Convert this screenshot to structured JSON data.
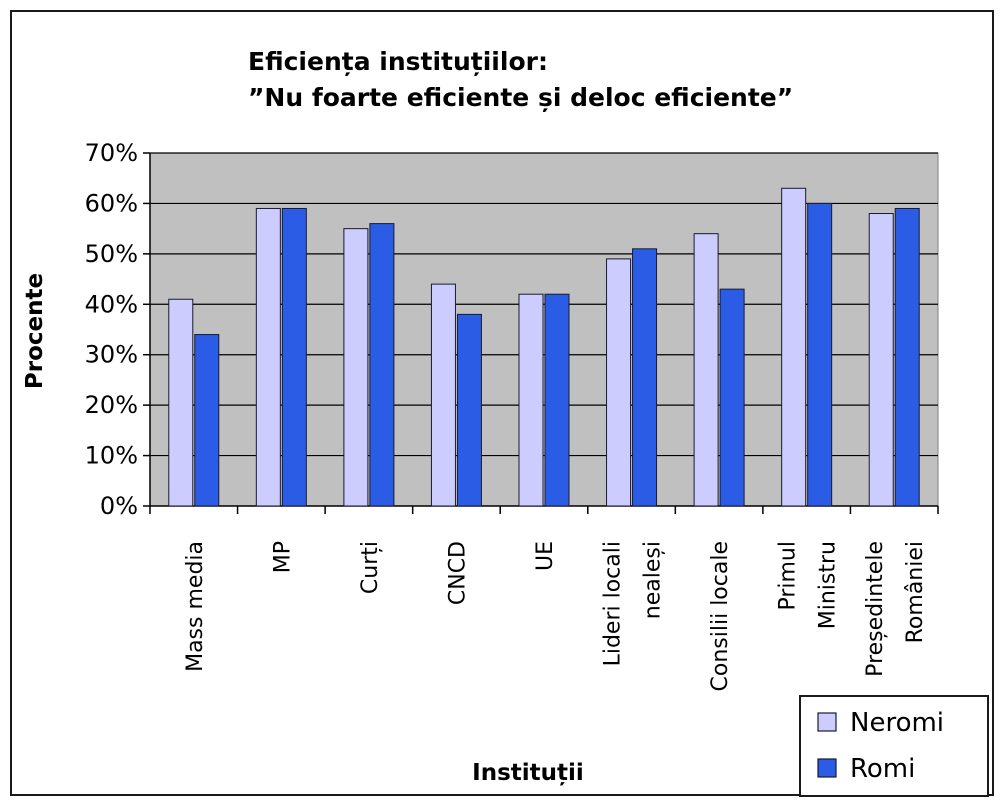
{
  "chart_data": {
    "type": "bar",
    "title": "Eficiența instituțiilor:",
    "subtitle": "”Nu foarte eficiente și deloc eficiente”",
    "xlabel": "Instituții",
    "ylabel": "Procente",
    "ylim": [
      0,
      70
    ],
    "yticks": [
      "0%",
      "10%",
      "20%",
      "30%",
      "40%",
      "50%",
      "60%",
      "70%"
    ],
    "grid": true,
    "legend_position": "bottom-right",
    "categories": [
      [
        "Mass media"
      ],
      [
        "MP"
      ],
      [
        "Curți"
      ],
      [
        "CNCD"
      ],
      [
        "UE"
      ],
      [
        "Lideri locali",
        "nealeși"
      ],
      [
        "Consilii locale"
      ],
      [
        "Primul",
        "Ministru"
      ],
      [
        "Președintele",
        "României"
      ]
    ],
    "series": [
      {
        "name": "Neromi",
        "color": "#ccccff",
        "values": [
          41,
          59,
          55,
          44,
          42,
          49,
          54,
          63,
          58
        ]
      },
      {
        "name": "Romi",
        "color": "#2b5ce6",
        "values": [
          34,
          59,
          56,
          38,
          42,
          51,
          43,
          60,
          59
        ]
      }
    ],
    "plot_background": "#c0c0c0"
  }
}
